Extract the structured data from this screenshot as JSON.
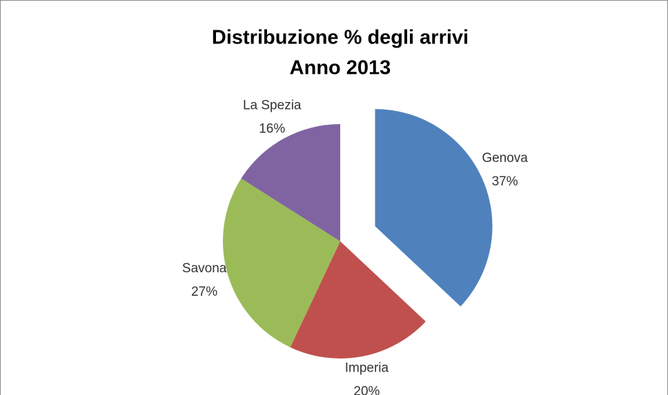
{
  "chart_data": {
    "type": "pie",
    "title": "Distribuzione % degli arrivi",
    "subtitle": "Anno 2013",
    "categories": [
      "Genova",
      "Imperia",
      "Savona",
      "La Spezia"
    ],
    "values": [
      37,
      20,
      27,
      16
    ],
    "value_labels": [
      "37%",
      "20%",
      "27%",
      "16%"
    ],
    "colors": [
      "#4f81bd",
      "#c0504d",
      "#9bbb59",
      "#8064a2"
    ],
    "exploded": [
      true,
      false,
      false,
      false
    ]
  }
}
